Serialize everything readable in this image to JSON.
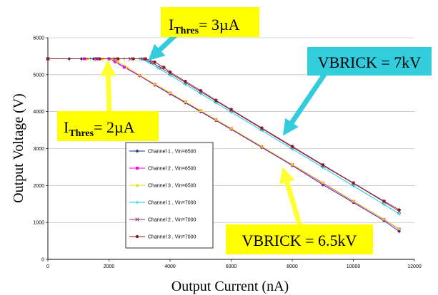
{
  "chart_data": {
    "type": "line",
    "title": "",
    "xlabel": "Output Current (nA)",
    "ylabel": "Output Voltage (V)",
    "xlim": [
      0,
      12000
    ],
    "ylim": [
      0,
      6000
    ],
    "x_ticks": [
      "0",
      "2000",
      "4000",
      "6000",
      "8000",
      "10000",
      "12000"
    ],
    "y_ticks": [
      "0",
      "1000",
      "2000",
      "3000",
      "4000",
      "5000",
      "6000"
    ],
    "grid": "horizontal",
    "legend_position": "inside-lower-left",
    "series": [
      {
        "name": "Channel 1 , Vin=6500",
        "color": "#1f2a80",
        "marker": "diamond",
        "x": [
          0,
          700,
          1100,
          1500,
          2000,
          2200,
          2500,
          3000,
          3500,
          4000,
          4500,
          5000,
          5500,
          6000,
          7000,
          8000,
          9000,
          10000,
          11000,
          11500
        ],
        "y": [
          5430,
          5430,
          5430,
          5430,
          5430,
          5350,
          5200,
          4970,
          4720,
          4480,
          4240,
          4000,
          3760,
          3520,
          3030,
          2540,
          2020,
          1540,
          1050,
          760
        ]
      },
      {
        "name": "Channel 2 , Vin=6500",
        "color": "#ff00ff",
        "marker": "square",
        "x": [
          0,
          1200,
          1600,
          2000,
          2200,
          2500,
          3000,
          3500,
          4000,
          4500,
          5000,
          5500,
          6000,
          7000,
          8000,
          9000,
          10000,
          11000,
          11500
        ],
        "y": [
          5430,
          5430,
          5430,
          5430,
          5360,
          5210,
          4980,
          4740,
          4500,
          4260,
          4020,
          3780,
          3540,
          3050,
          2560,
          2060,
          1570,
          1080,
          820
        ]
      },
      {
        "name": "Channel 3 , Vin=6500",
        "color": "#e8d800",
        "marker": "triangle",
        "x": [
          0,
          1300,
          1800,
          2100,
          2300,
          2600,
          3000,
          3500,
          4000,
          4500,
          5000,
          5500,
          6000,
          7000,
          8000,
          9000,
          10000,
          11000,
          11500
        ],
        "y": [
          5430,
          5430,
          5430,
          5430,
          5350,
          5200,
          4990,
          4750,
          4510,
          4270,
          4030,
          3790,
          3550,
          3060,
          2570,
          2080,
          1580,
          1090,
          830
        ]
      },
      {
        "name": "Channel 1 , Vin=7000",
        "color": "#00c8d8",
        "marker": "cross",
        "x": [
          0,
          1400,
          2000,
          2500,
          3000,
          3300,
          3600,
          4000,
          4500,
          5000,
          5500,
          6000,
          7000,
          8000,
          9000,
          10000,
          11000,
          11500
        ],
        "y": [
          5430,
          5430,
          5430,
          5430,
          5430,
          5340,
          5190,
          4990,
          4740,
          4490,
          4240,
          3990,
          3490,
          2990,
          2490,
          1990,
          1490,
          1230
        ]
      },
      {
        "name": "Channel 2 , Vin=7000",
        "color": "#7a2a7a",
        "marker": "x",
        "x": [
          0,
          1600,
          2200,
          2700,
          3100,
          3400,
          3700,
          4000,
          4500,
          5000,
          5500,
          6000,
          7000,
          8000,
          9000,
          10000,
          11000,
          11500
        ],
        "y": [
          5430,
          5430,
          5430,
          5430,
          5430,
          5330,
          5190,
          5040,
          4790,
          4540,
          4290,
          4040,
          3540,
          3040,
          2540,
          2060,
          1560,
          1300
        ]
      },
      {
        "name": "Channel 3 , Vin=7000",
        "color": "#8b1a1a",
        "marker": "circle",
        "x": [
          0,
          1700,
          2300,
          2800,
          3200,
          3500,
          3800,
          4000,
          4500,
          5000,
          5500,
          6000,
          7000,
          8000,
          9000,
          10000,
          11000,
          11500
        ],
        "y": [
          5430,
          5430,
          5430,
          5430,
          5430,
          5340,
          5200,
          5070,
          4820,
          4570,
          4310,
          4060,
          3560,
          3060,
          2560,
          2070,
          1580,
          1340
        ]
      }
    ],
    "annotations": [
      {
        "text": "I_Thres= 3µA",
        "main": "I",
        "sub": "Thres",
        "rest": "= 3µA",
        "box_color": "#ffff00",
        "arrow_color": "#33ccdd",
        "target": [
          3150,
          5430
        ]
      },
      {
        "text": "I_Thres= 2µA",
        "main": "I",
        "sub": "Thres",
        "rest": "= 2µA",
        "box_color": "#ffff00",
        "arrow_color": "#ffff33",
        "target": [
          2100,
          5430
        ]
      },
      {
        "text": "VBRICK = 7kV",
        "box_color": "#33ccdd",
        "arrow_color": "#33ccdd",
        "target": [
          7500,
          3200
        ]
      },
      {
        "text": "VBRICK = 6.5kV",
        "box_color": "#ffff00",
        "arrow_color": "#ffff33",
        "target": [
          7800,
          2550
        ]
      }
    ]
  }
}
